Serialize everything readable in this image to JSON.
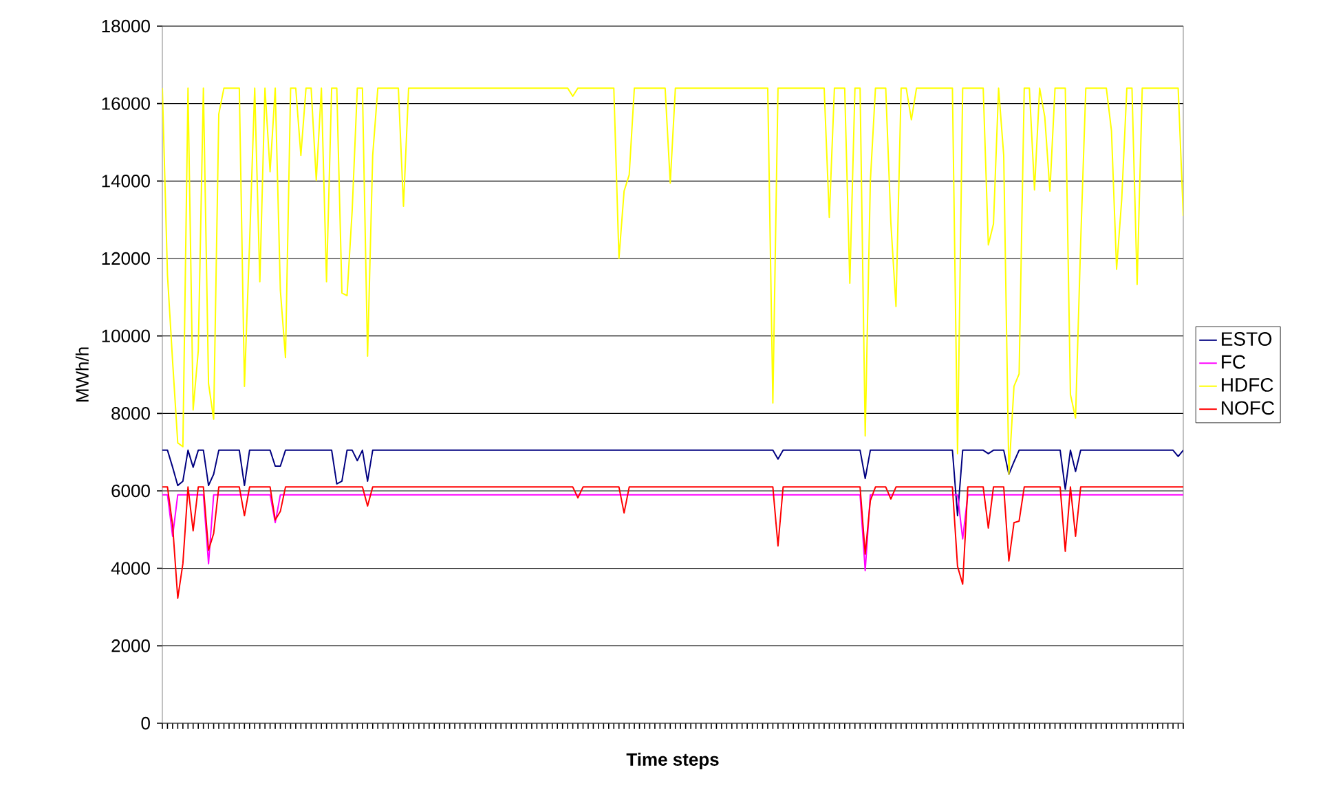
{
  "chart_data": {
    "type": "line",
    "xlabel": "**Time steps**",
    "ylabel": "MWh/h",
    "ylim": [
      0,
      18000
    ],
    "yticks": [
      0,
      2000,
      4000,
      6000,
      8000,
      10000,
      12000,
      14000,
      16000,
      18000
    ],
    "grid": "y",
    "legend": "right",
    "tick_labels": "y",
    "categories": [
      null,
      null,
      null,
      null,
      null,
      null,
      null,
      null,
      null,
      null,
      null,
      null,
      null,
      null,
      null,
      null,
      null,
      null,
      null,
      null,
      null,
      null,
      null,
      null,
      null,
      null,
      null,
      null,
      null,
      null,
      null,
      null,
      null,
      null,
      null,
      null,
      null,
      null,
      null,
      null,
      null,
      null,
      null,
      null,
      null,
      null,
      null,
      null,
      null,
      null,
      null,
      null,
      null,
      null,
      null,
      null,
      null,
      null,
      null,
      null,
      null,
      null,
      null,
      null,
      null,
      null,
      null,
      null,
      null,
      null,
      null,
      null,
      null,
      null,
      null,
      null,
      null,
      null,
      null,
      null,
      null,
      null,
      null,
      null,
      null,
      null,
      null,
      null,
      null,
      null,
      null,
      null,
      null,
      null,
      null,
      null,
      null,
      null,
      null,
      null,
      null,
      null,
      null,
      null,
      null,
      null,
      null,
      null,
      null,
      null,
      null,
      null,
      null,
      null,
      null,
      null,
      null,
      null,
      null,
      null,
      null,
      null,
      null,
      null,
      null,
      null,
      null,
      null,
      null,
      null,
      null,
      null,
      null,
      null,
      null,
      null,
      null,
      null,
      null,
      null,
      null,
      null,
      null,
      null,
      null,
      null,
      null,
      null,
      null,
      null,
      null,
      null,
      null,
      null,
      null,
      null,
      null,
      null,
      null,
      null,
      null,
      null,
      null,
      null,
      null,
      null,
      null,
      null,
      null,
      null,
      null,
      null,
      null,
      null,
      null,
      null,
      null,
      null,
      null,
      null,
      null,
      null,
      null,
      null,
      null,
      null,
      null,
      null,
      null,
      null,
      null,
      null,
      null,
      null,
      null,
      null,
      null,
      null,
      null,
      null
    ],
    "series": [
      {
        "name": "ESTO",
        "color": "#000080",
        "values": [
          7050,
          7050,
          6610,
          6140,
          6250,
          7050,
          6610,
          7050,
          7050,
          6140,
          6430,
          7050,
          7050,
          7050,
          7050,
          7050,
          6140,
          7050,
          7050,
          7050,
          7050,
          7050,
          6640,
          6640,
          7050,
          7050,
          7050,
          7050,
          7050,
          7050,
          7050,
          7050,
          7050,
          7050,
          6180,
          6250,
          7050,
          7050,
          6780,
          7050,
          6250,
          7050,
          7050,
          7050,
          7050,
          7050,
          7050,
          7050,
          7050,
          7050,
          7050,
          7050,
          7050,
          7050,
          7050,
          7050,
          7050,
          7050,
          7050,
          7050,
          7050,
          7050,
          7050,
          7050,
          7050,
          7050,
          7050,
          7050,
          7050,
          7050,
          7050,
          7050,
          7050,
          7050,
          7050,
          7050,
          7050,
          7050,
          7050,
          7050,
          7050,
          7050,
          7050,
          7050,
          7050,
          7050,
          7050,
          7050,
          7050,
          7050,
          7050,
          7050,
          7050,
          7050,
          7050,
          7050,
          7050,
          7050,
          7050,
          7050,
          7050,
          7050,
          7050,
          7050,
          7050,
          7050,
          7050,
          7050,
          7050,
          7050,
          7050,
          7050,
          7050,
          7050,
          7050,
          7050,
          7050,
          7050,
          7050,
          7050,
          6820,
          7050,
          7050,
          7050,
          7050,
          7050,
          7050,
          7050,
          7050,
          7050,
          7050,
          7050,
          7050,
          7050,
          7050,
          7050,
          7050,
          6320,
          7050,
          7050,
          7050,
          7050,
          7050,
          7050,
          7050,
          7050,
          7050,
          7050,
          7050,
          7050,
          7050,
          7050,
          7050,
          7050,
          7050,
          5360,
          7050,
          7050,
          7050,
          7050,
          7050,
          6960,
          7050,
          7050,
          7050,
          6430,
          6750,
          7050,
          7050,
          7050,
          7050,
          7050,
          7050,
          7050,
          7050,
          7050,
          6040,
          7050,
          6500,
          7050,
          7050,
          7050,
          7050,
          7050,
          7050,
          7050,
          7050,
          7050,
          7050,
          7050,
          7050,
          7050,
          7050,
          7050,
          7050,
          7050,
          7050,
          7050,
          6890,
          7050
        ]
      },
      {
        "name": "FC",
        "color": "#ff00ff",
        "values": [
          5900,
          5900,
          4830,
          5900,
          5900,
          5900,
          5900,
          5900,
          5900,
          4120,
          5900,
          5900,
          5900,
          5900,
          5900,
          5900,
          5900,
          5900,
          5900,
          5900,
          5900,
          5900,
          5180,
          5900,
          5900,
          5900,
          5900,
          5900,
          5900,
          5900,
          5900,
          5900,
          5900,
          5900,
          5900,
          5900,
          5900,
          5900,
          5900,
          5900,
          5900,
          5900,
          5900,
          5900,
          5900,
          5900,
          5900,
          5900,
          5900,
          5900,
          5900,
          5900,
          5900,
          5900,
          5900,
          5900,
          5900,
          5900,
          5900,
          5900,
          5900,
          5900,
          5900,
          5900,
          5900,
          5900,
          5900,
          5900,
          5900,
          5900,
          5900,
          5900,
          5900,
          5900,
          5900,
          5900,
          5900,
          5900,
          5900,
          5900,
          5900,
          5900,
          5900,
          5900,
          5900,
          5900,
          5900,
          5900,
          5900,
          5900,
          5900,
          5900,
          5900,
          5900,
          5900,
          5900,
          5900,
          5900,
          5900,
          5900,
          5900,
          5900,
          5900,
          5900,
          5900,
          5900,
          5900,
          5900,
          5900,
          5900,
          5900,
          5900,
          5900,
          5900,
          5900,
          5900,
          5900,
          5900,
          5900,
          5900,
          5900,
          5900,
          5900,
          5900,
          5900,
          5900,
          5900,
          5900,
          5900,
          5900,
          5900,
          5900,
          5900,
          5900,
          5900,
          5900,
          5900,
          3940,
          5900,
          5900,
          5900,
          5900,
          5900,
          5900,
          5900,
          5900,
          5900,
          5900,
          5900,
          5900,
          5900,
          5900,
          5900,
          5900,
          5900,
          5900,
          4760,
          5900,
          5900,
          5900,
          5900,
          5900,
          5900,
          5900,
          5900,
          5900,
          5900,
          5900,
          5900,
          5900,
          5900,
          5900,
          5900,
          5900,
          5900,
          5900,
          5900,
          5900,
          5900,
          5900,
          5900,
          5900,
          5900,
          5900,
          5900,
          5900,
          5900,
          5900,
          5900,
          5900,
          5900,
          5900,
          5900,
          5900,
          5900,
          5900,
          5900,
          5900,
          5900,
          5900
        ]
      },
      {
        "name": "HDFC",
        "color": "#ffff00",
        "values": [
          16400,
          11570,
          9340,
          7240,
          7140,
          16400,
          8090,
          9620,
          16400,
          8770,
          7850,
          15730,
          16400,
          16400,
          16400,
          16400,
          8700,
          12390,
          16400,
          11400,
          16400,
          14240,
          16400,
          11180,
          9440,
          16400,
          16400,
          14660,
          16400,
          16400,
          14020,
          16400,
          11400,
          16400,
          16400,
          11110,
          11040,
          13240,
          16400,
          16400,
          9480,
          14660,
          16400,
          16400,
          16400,
          16400,
          16400,
          13350,
          16400,
          16400,
          16400,
          16400,
          16400,
          16400,
          16400,
          16400,
          16400,
          16400,
          16400,
          16400,
          16400,
          16400,
          16400,
          16400,
          16400,
          16400,
          16400,
          16400,
          16400,
          16400,
          16400,
          16400,
          16400,
          16400,
          16400,
          16400,
          16400,
          16400,
          16400,
          16400,
          16190,
          16400,
          16400,
          16400,
          16400,
          16400,
          16400,
          16400,
          16400,
          12000,
          13740,
          14160,
          16400,
          16400,
          16400,
          16400,
          16400,
          16400,
          16400,
          13950,
          16400,
          16400,
          16400,
          16400,
          16400,
          16400,
          16400,
          16400,
          16400,
          16400,
          16400,
          16400,
          16400,
          16400,
          16400,
          16400,
          16400,
          16400,
          16400,
          8270,
          16400,
          16400,
          16400,
          16400,
          16400,
          16400,
          16400,
          16400,
          16400,
          16400,
          13060,
          16400,
          16400,
          16400,
          11360,
          16400,
          16400,
          7420,
          13990,
          16400,
          16400,
          16400,
          12920,
          10760,
          16400,
          16400,
          15580,
          16400,
          16400,
          16400,
          16400,
          16400,
          16400,
          16400,
          16400,
          6960,
          16400,
          16400,
          16400,
          16400,
          16400,
          12350,
          12890,
          16400,
          14660,
          6430,
          8700,
          9020,
          16400,
          16400,
          13770,
          16400,
          15660,
          13740,
          16400,
          16400,
          16400,
          8490,
          7880,
          12430,
          16400,
          16400,
          16400,
          16400,
          16400,
          15300,
          11720,
          13530,
          16400,
          16400,
          11330,
          16400,
          16400,
          16400,
          16400,
          16400,
          16400,
          16400,
          16400,
          13100
        ]
      },
      {
        "name": "NOFC",
        "color": "#ff0000",
        "values": [
          6100,
          6100,
          5110,
          3230,
          4120,
          6100,
          4970,
          6100,
          6100,
          4470,
          4900,
          6100,
          6100,
          6100,
          6100,
          6100,
          5360,
          6100,
          6100,
          6100,
          6100,
          6100,
          5250,
          5470,
          6100,
          6100,
          6100,
          6100,
          6100,
          6100,
          6100,
          6100,
          6100,
          6100,
          6100,
          6100,
          6100,
          6100,
          6100,
          6100,
          5610,
          6100,
          6100,
          6100,
          6100,
          6100,
          6100,
          6100,
          6100,
          6100,
          6100,
          6100,
          6100,
          6100,
          6100,
          6100,
          6100,
          6100,
          6100,
          6100,
          6100,
          6100,
          6100,
          6100,
          6100,
          6100,
          6100,
          6100,
          6100,
          6100,
          6100,
          6100,
          6100,
          6100,
          6100,
          6100,
          6100,
          6100,
          6100,
          6100,
          6100,
          5820,
          6100,
          6100,
          6100,
          6100,
          6100,
          6100,
          6100,
          6100,
          5430,
          6100,
          6100,
          6100,
          6100,
          6100,
          6100,
          6100,
          6100,
          6100,
          6100,
          6100,
          6100,
          6100,
          6100,
          6100,
          6100,
          6100,
          6100,
          6100,
          6100,
          6100,
          6100,
          6100,
          6100,
          6100,
          6100,
          6100,
          6100,
          6100,
          4580,
          6100,
          6100,
          6100,
          6100,
          6100,
          6100,
          6100,
          6100,
          6100,
          6100,
          6100,
          6100,
          6100,
          6100,
          6100,
          6100,
          4370,
          5750,
          6100,
          6100,
          6100,
          5790,
          6100,
          6100,
          6100,
          6100,
          6100,
          6100,
          6100,
          6100,
          6100,
          6100,
          6100,
          6100,
          4050,
          3590,
          6100,
          6100,
          6100,
          6100,
          5040,
          6100,
          6100,
          6100,
          4190,
          5180,
          5220,
          6100,
          6100,
          6100,
          6100,
          6100,
          6100,
          6100,
          6100,
          4440,
          6100,
          4830,
          6100,
          6100,
          6100,
          6100,
          6100,
          6100,
          6100,
          6100,
          6100,
          6100,
          6100,
          6100,
          6100,
          6100,
          6100,
          6100,
          6100,
          6100,
          6100,
          6100,
          6100
        ]
      }
    ]
  }
}
